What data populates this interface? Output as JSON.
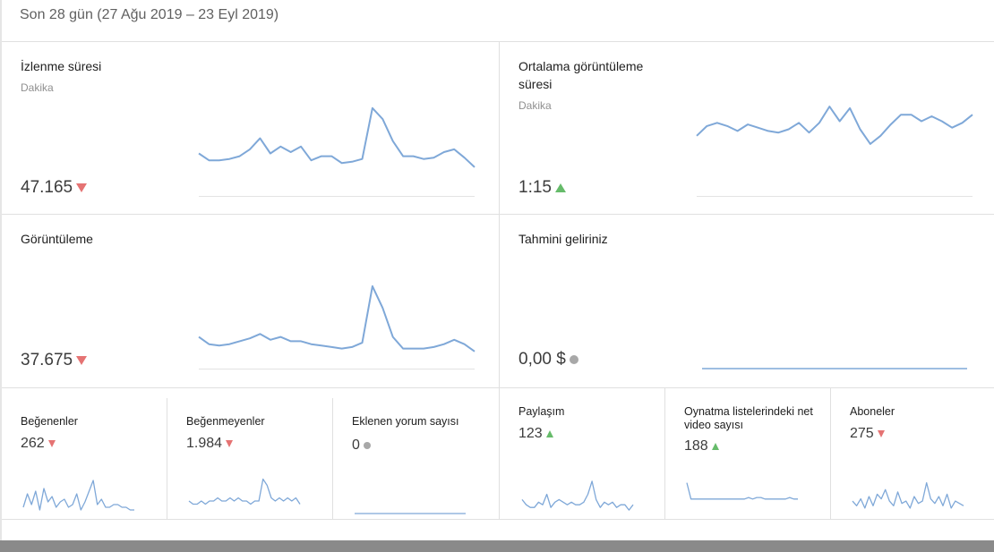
{
  "period": "Son 28 gün (27 Ağu 2019 – 23 Eyl 2019)",
  "colors": {
    "line": "#7fa8d8",
    "down": "#e57373",
    "up": "#66bb6a",
    "neutral": "#a8a8a8"
  },
  "cards": {
    "watch_time": {
      "title": "İzlenme süresi",
      "unit": "Dakika",
      "value": "47.165",
      "trend": "down",
      "series": [
        55,
        50,
        50,
        51,
        53,
        58,
        66,
        55,
        60,
        56,
        60,
        50,
        53,
        53,
        48,
        49,
        51,
        88,
        80,
        64,
        53,
        53,
        51,
        52,
        56,
        58,
        52,
        45
      ]
    },
    "avg_duration": {
      "title": "Ortalama görüntüleme süresi",
      "unit": "Dakika",
      "value": "1:15",
      "trend": "up",
      "series": [
        62,
        68,
        70,
        68,
        65,
        69,
        67,
        65,
        64,
        66,
        70,
        64,
        70,
        80,
        71,
        79,
        66,
        57,
        62,
        69,
        75,
        75,
        71,
        74,
        71,
        67,
        70,
        75
      ]
    },
    "views": {
      "title": "Görüntüleme",
      "value": "37.675",
      "trend": "down",
      "series": [
        40,
        35,
        34,
        35,
        37,
        39,
        42,
        38,
        40,
        37,
        37,
        35,
        34,
        33,
        32,
        33,
        36,
        75,
        60,
        40,
        32,
        32,
        32,
        33,
        35,
        38,
        35,
        30
      ]
    },
    "revenue": {
      "title": "Tahmini geliriniz",
      "value": "0,00 $",
      "trend": "neutral",
      "series": [
        0,
        0,
        0,
        0,
        0,
        0,
        0,
        0,
        0,
        0,
        0,
        0,
        0,
        0,
        0,
        0,
        0,
        0,
        0,
        0,
        0,
        0,
        0,
        0,
        0,
        0,
        0,
        0
      ]
    }
  },
  "small_cards": [
    {
      "title": "Beğenenler",
      "value": "262",
      "trend": "down",
      "series": [
        3,
        8,
        4,
        9,
        2,
        10,
        5,
        7,
        3,
        5,
        6,
        3,
        4,
        8,
        2,
        5,
        9,
        13,
        4,
        6,
        3,
        3,
        4,
        4,
        3,
        3,
        2,
        2
      ]
    },
    {
      "title": "Beğenmeyenler",
      "value": "1.984",
      "trend": "down",
      "series": [
        4,
        3,
        3,
        4,
        3,
        4,
        4,
        5,
        4,
        4,
        5,
        4,
        5,
        4,
        4,
        3,
        4,
        4,
        11,
        9,
        5,
        4,
        5,
        4,
        5,
        4,
        5,
        3
      ]
    },
    {
      "title": "Eklenen yorum sayısı",
      "value": "0",
      "trend": "neutral",
      "series": [
        0,
        0,
        0,
        0,
        0,
        0,
        0,
        0,
        0,
        0,
        0,
        0,
        0,
        0,
        0,
        0,
        0,
        0,
        0,
        0,
        0,
        0,
        0,
        0,
        0,
        0,
        0,
        0
      ]
    },
    {
      "title": "Paylaşım",
      "value": "123",
      "trend": "up",
      "series": [
        5,
        3,
        2,
        2,
        4,
        3,
        7,
        2,
        4,
        5,
        4,
        3,
        4,
        3,
        3,
        4,
        7,
        12,
        5,
        2,
        4,
        3,
        4,
        2,
        3,
        3,
        1,
        3
      ]
    },
    {
      "title": "Oynatma listelerindeki net video sayısı",
      "value": "188",
      "trend": "up",
      "series": [
        16,
        5,
        5,
        5,
        5,
        5,
        5,
        5,
        5,
        5,
        5,
        5,
        5,
        5,
        5,
        6,
        5,
        6,
        6,
        5,
        5,
        5,
        5,
        5,
        5,
        6,
        5,
        5
      ]
    },
    {
      "title": "Aboneler",
      "value": "275",
      "trend": "down",
      "series": [
        5,
        3,
        6,
        2,
        7,
        3,
        8,
        6,
        10,
        5,
        3,
        9,
        4,
        5,
        2,
        7,
        4,
        5,
        13,
        6,
        4,
        7,
        3,
        8,
        2,
        5,
        4,
        3
      ]
    }
  ]
}
